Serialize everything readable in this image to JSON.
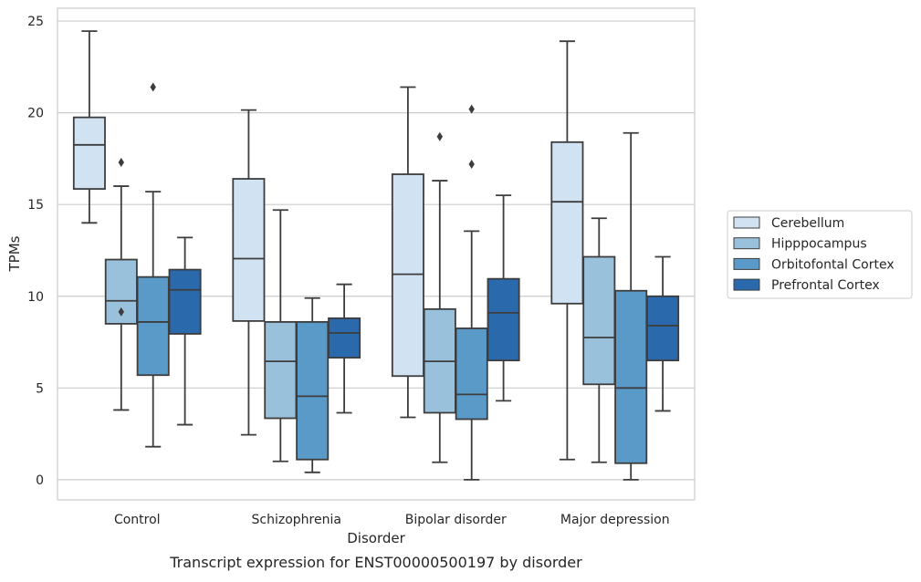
{
  "chart_data": {
    "type": "box",
    "title": "",
    "caption": "Transcript expression for ENST00000500197 by disorder",
    "xlabel": "Disorder",
    "ylabel": "TPMs",
    "ylim": [
      -1.1,
      25.7
    ],
    "yticks": [
      0,
      5,
      10,
      15,
      20,
      25
    ],
    "grid": "horizontal",
    "legend_position": "right",
    "categories": [
      "Control",
      "Schizophrenia",
      "Bipolar disorder",
      "Major depression"
    ],
    "series": [
      {
        "name": "Cerebellum",
        "color": "#d1e2f2",
        "boxes": [
          {
            "whisker_low": 14.0,
            "q1": 15.85,
            "median": 18.25,
            "q3": 19.75,
            "whisker_high": 24.45,
            "outliers": []
          },
          {
            "whisker_low": 2.45,
            "q1": 8.65,
            "median": 12.05,
            "q3": 16.4,
            "whisker_high": 20.15,
            "outliers": []
          },
          {
            "whisker_low": 3.4,
            "q1": 5.65,
            "median": 11.2,
            "q3": 16.65,
            "whisker_high": 21.4,
            "outliers": []
          },
          {
            "whisker_low": 1.1,
            "q1": 9.6,
            "median": 15.15,
            "q3": 18.4,
            "whisker_high": 23.9,
            "outliers": []
          }
        ]
      },
      {
        "name": "Hipppocampus",
        "color": "#9ac1dc",
        "boxes": [
          {
            "whisker_low": 3.8,
            "q1": 8.5,
            "median": 9.75,
            "q3": 12.0,
            "whisker_high": 16.0,
            "outliers": [
              9.15,
              17.3
            ]
          },
          {
            "whisker_low": 1.0,
            "q1": 3.35,
            "median": 6.45,
            "q3": 8.6,
            "whisker_high": 14.7,
            "outliers": []
          },
          {
            "whisker_low": 0.95,
            "q1": 3.65,
            "median": 6.45,
            "q3": 9.3,
            "whisker_high": 16.3,
            "outliers": [
              18.7
            ]
          },
          {
            "whisker_low": 0.95,
            "q1": 5.2,
            "median": 7.75,
            "q3": 12.15,
            "whisker_high": 14.25,
            "outliers": []
          }
        ]
      },
      {
        "name": "Orbitofontal Cortex",
        "color": "#5a9ac9",
        "boxes": [
          {
            "whisker_low": 1.8,
            "q1": 5.7,
            "median": 8.6,
            "q3": 11.05,
            "whisker_high": 15.7,
            "outliers": [
              21.4
            ]
          },
          {
            "whisker_low": 0.4,
            "q1": 1.1,
            "median": 4.55,
            "q3": 8.6,
            "whisker_high": 9.9,
            "outliers": []
          },
          {
            "whisker_low": 0.0,
            "q1": 3.3,
            "median": 4.65,
            "q3": 8.25,
            "whisker_high": 13.55,
            "outliers": [
              17.2,
              20.2
            ]
          },
          {
            "whisker_low": 0.0,
            "q1": 0.9,
            "median": 5.0,
            "q3": 10.3,
            "whisker_high": 18.9,
            "outliers": []
          }
        ]
      },
      {
        "name": "Prefrontal Cortex",
        "color": "#2a69ac",
        "boxes": [
          {
            "whisker_low": 3.0,
            "q1": 7.95,
            "median": 10.35,
            "q3": 11.45,
            "whisker_high": 13.2,
            "outliers": []
          },
          {
            "whisker_low": 3.65,
            "q1": 6.65,
            "median": 8.0,
            "q3": 8.8,
            "whisker_high": 10.65,
            "outliers": []
          },
          {
            "whisker_low": 4.3,
            "q1": 6.5,
            "median": 9.1,
            "q3": 10.95,
            "whisker_high": 15.5,
            "outliers": []
          },
          {
            "whisker_low": 3.75,
            "q1": 6.5,
            "median": 8.4,
            "q3": 10.0,
            "whisker_high": 12.15,
            "outliers": []
          }
        ]
      }
    ]
  }
}
